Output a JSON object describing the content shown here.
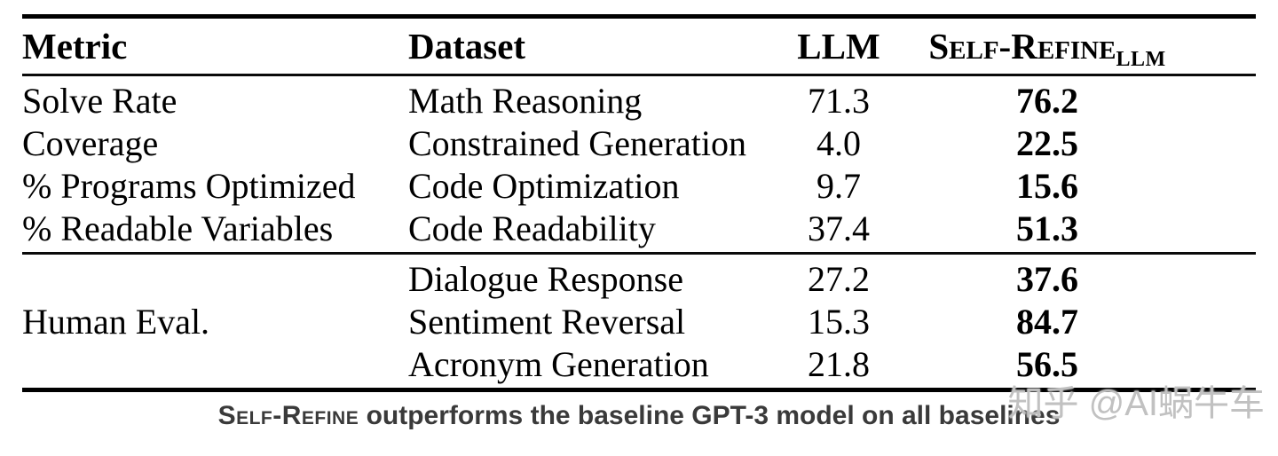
{
  "table": {
    "headers": {
      "metric": "Metric",
      "dataset": "Dataset",
      "llm": "LLM",
      "self_refine": "Self-Refine",
      "self_refine_sub": "LLM"
    },
    "section1": [
      {
        "metric": "Solve Rate",
        "dataset": "Math Reasoning",
        "llm": "71.3",
        "self_refine": "76.2"
      },
      {
        "metric": "Coverage",
        "dataset": "Constrained Generation",
        "llm": "4.0",
        "self_refine": "22.5"
      },
      {
        "metric": "% Programs Optimized",
        "dataset": "Code Optimization",
        "llm": "9.7",
        "self_refine": "15.6"
      },
      {
        "metric": "% Readable Variables",
        "dataset": "Code Readability",
        "llm": "37.4",
        "self_refine": "51.3"
      }
    ],
    "section2": {
      "metric": "Human Eval.",
      "rows": [
        {
          "dataset": "Dialogue Response",
          "llm": "27.2",
          "self_refine": "37.6"
        },
        {
          "dataset": "Sentiment Reversal",
          "llm": "15.3",
          "self_refine": "84.7"
        },
        {
          "dataset": "Acronym Generation",
          "llm": "21.8",
          "self_refine": "56.5"
        }
      ]
    }
  },
  "caption": {
    "smallcaps": "Self-Refine",
    "rest": " outperforms the baseline GPT-3 model on all baselines"
  },
  "watermark": "知乎 @AI蜗牛车",
  "colors": {
    "text": "#000000",
    "caption_text": "#3a3a3a",
    "watermark_text": "#bebebe",
    "rule": "#000000",
    "background": "#ffffff"
  }
}
